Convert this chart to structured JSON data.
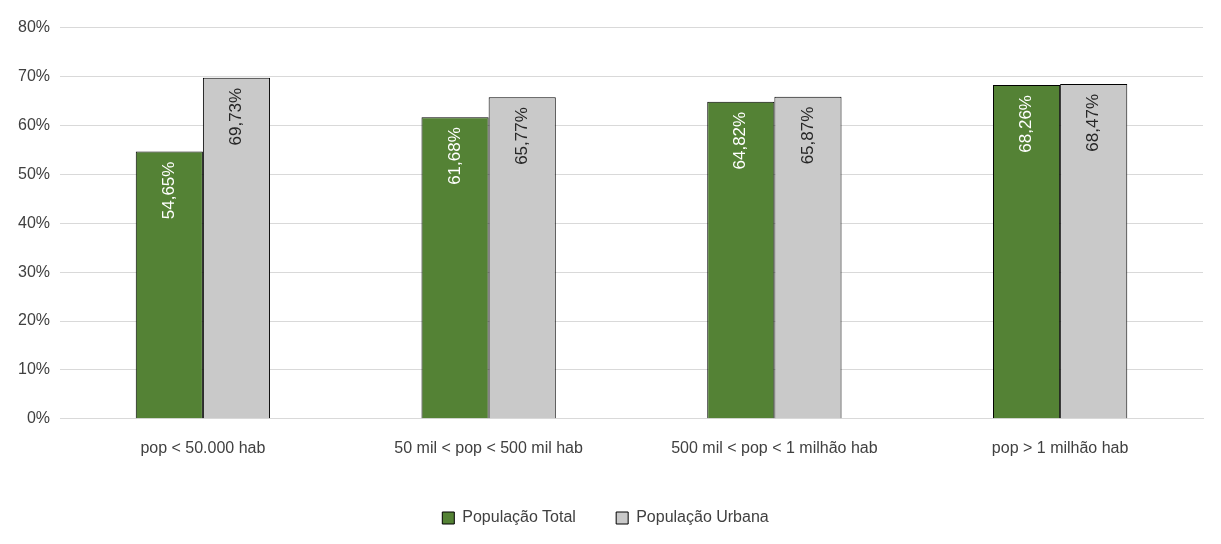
{
  "chart_data": {
    "type": "bar",
    "categories": [
      "pop < 50.000 hab",
      "50 mil < pop < 500 mil hab",
      "500 mil < pop < 1 milhão hab",
      "pop > 1 milhão hab"
    ],
    "series": [
      {
        "name": "População Total",
        "color": "#548235",
        "values": [
          54.65,
          61.68,
          64.82,
          68.26
        ],
        "value_labels": [
          "54,65%",
          "61,68%",
          "64,82%",
          "68,26%"
        ]
      },
      {
        "name": "População Urbana",
        "color": "#c9c9c9",
        "values": [
          69.73,
          65.77,
          65.87,
          68.47
        ],
        "value_labels": [
          "69,73%",
          "65,77%",
          "65,87%",
          "68,47%"
        ]
      }
    ],
    "ylim": [
      0,
      80
    ],
    "yticks": [
      {
        "value": 0,
        "label": "0%"
      },
      {
        "value": 10,
        "label": "10%"
      },
      {
        "value": 20,
        "label": "20%"
      },
      {
        "value": 30,
        "label": "30%"
      },
      {
        "value": 40,
        "label": "40%"
      },
      {
        "value": 50,
        "label": "50%"
      },
      {
        "value": 60,
        "label": "60%"
      },
      {
        "value": 70,
        "label": "70%"
      },
      {
        "value": 80,
        "label": "80%"
      }
    ],
    "grid": "y",
    "legend": "bottom"
  }
}
